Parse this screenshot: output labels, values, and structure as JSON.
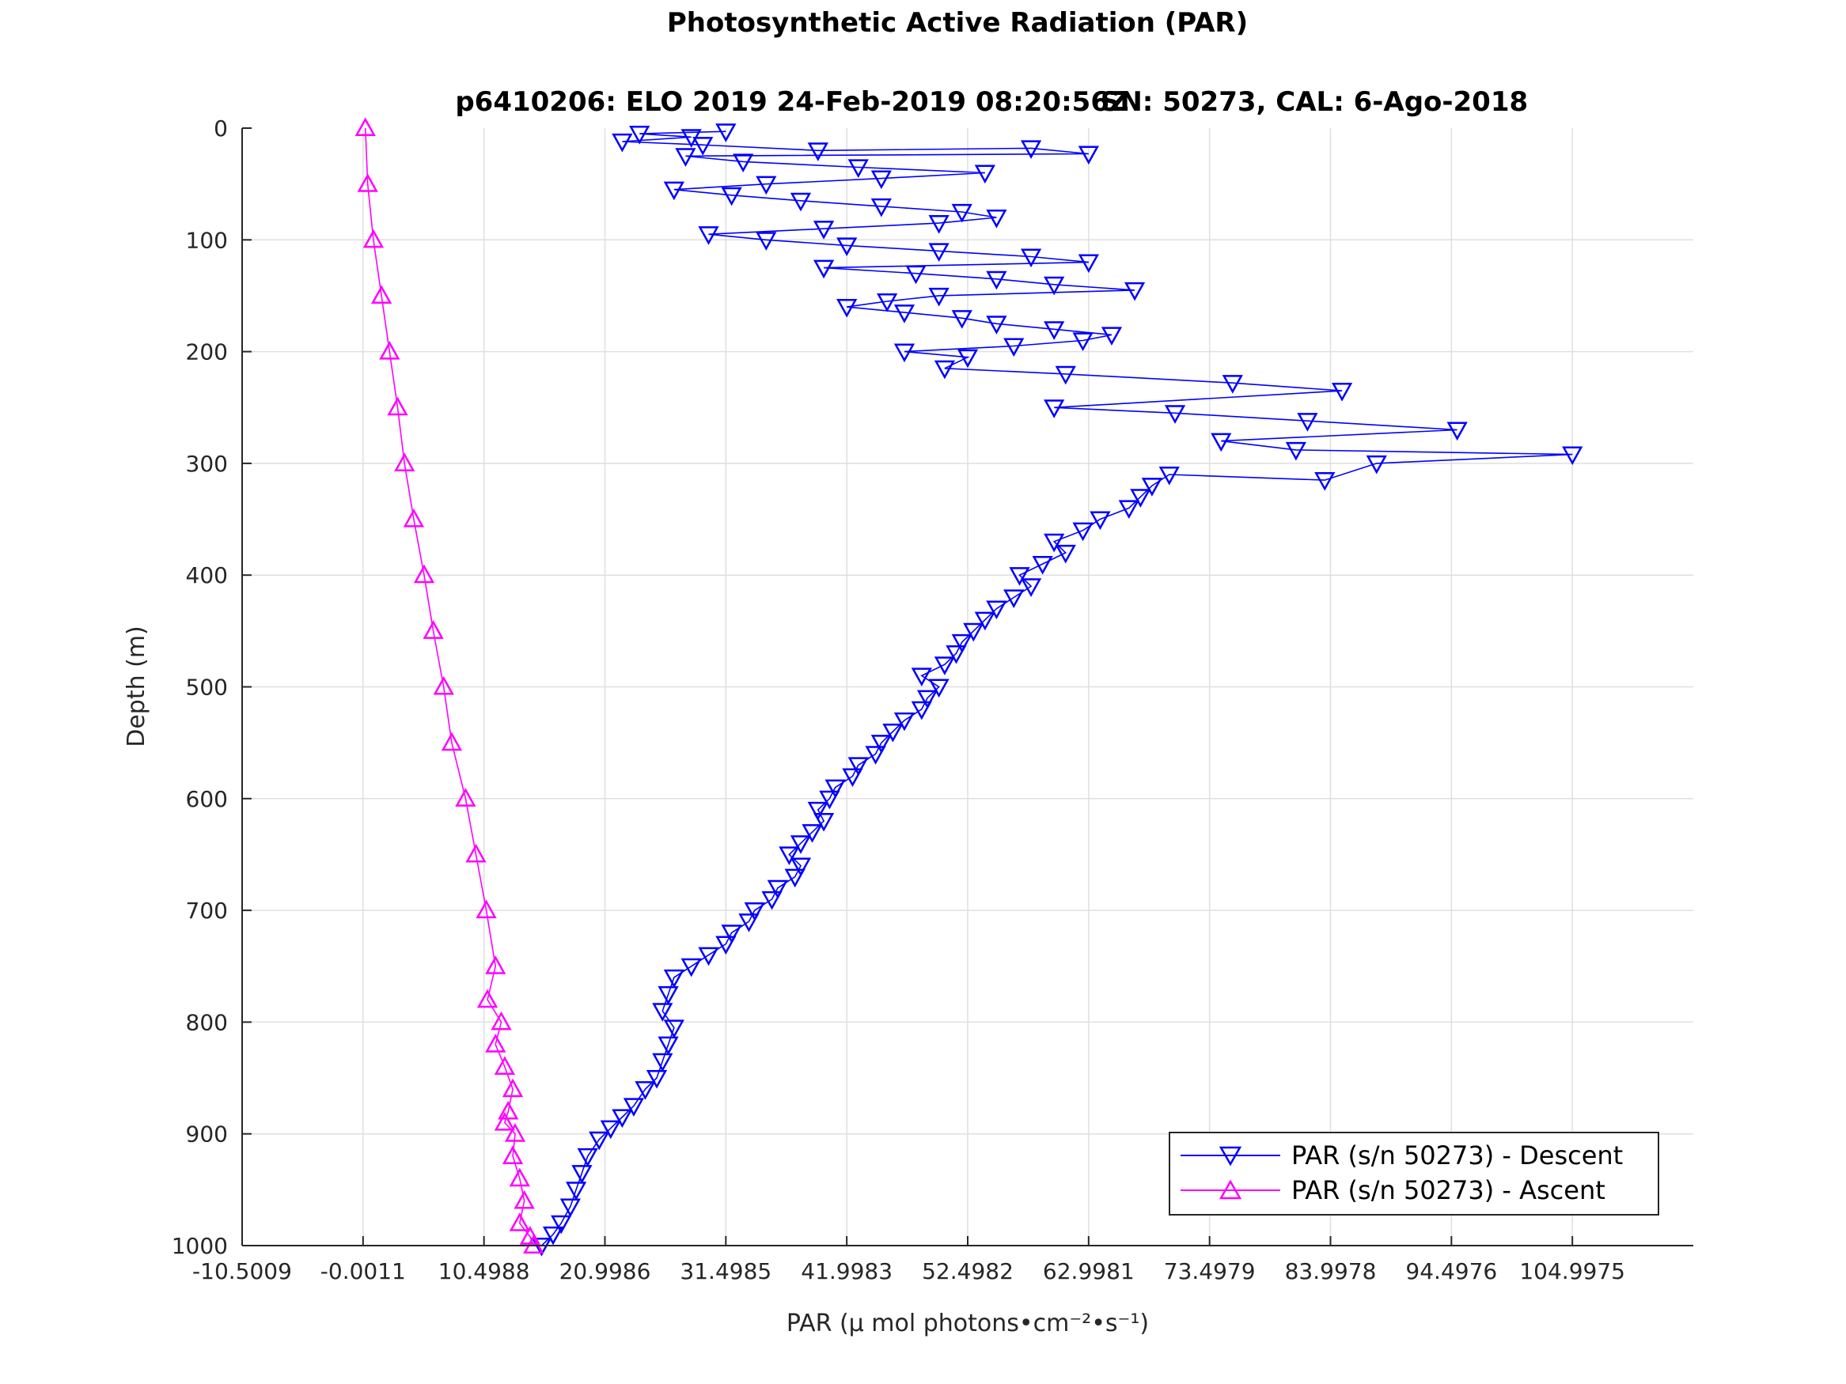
{
  "title": "Photosynthetic Active Radiation (PAR)",
  "subtitle_left": "p6410206: ELO 2019 24-Feb-2019 08:20:56Z",
  "subtitle_right": "SN: 50273, CAL: 6-Ago-2018",
  "colors": {
    "descent": "#0000ff",
    "ascent": "#ff00ff",
    "grid": "#dfdfdf",
    "axis": "#262626"
  },
  "chart_data": {
    "type": "scatter",
    "xlabel": "PAR (μ mol photons•cm⁻²•s⁻¹)",
    "ylabel": "Depth (m)",
    "xlim": [
      -10.5009,
      115.4975
    ],
    "ylim": [
      0,
      1000
    ],
    "y_reversed": true,
    "grid": true,
    "legend_position": "bottom-right",
    "x_ticks": [
      "-10.5009",
      "-0.0011",
      "10.4988",
      "20.9986",
      "31.4985",
      "41.9983",
      "52.4982",
      "62.9981",
      "73.4979",
      "83.9978",
      "94.4976",
      "104.9975"
    ],
    "y_ticks": [
      "0",
      "100",
      "200",
      "300",
      "400",
      "500",
      "600",
      "700",
      "800",
      "900",
      "1000"
    ],
    "series": [
      {
        "name": "PAR (s/n 50273) - Descent",
        "marker": "triangle-down",
        "points": [
          [
            15.5,
            1000
          ],
          [
            16.5,
            990
          ],
          [
            17.2,
            980
          ],
          [
            18.0,
            965
          ],
          [
            18.5,
            950
          ],
          [
            19.0,
            935
          ],
          [
            19.5,
            920
          ],
          [
            20.5,
            905
          ],
          [
            21.5,
            895
          ],
          [
            22.5,
            885
          ],
          [
            23.5,
            875
          ],
          [
            24.5,
            860
          ],
          [
            25.5,
            850
          ],
          [
            26.0,
            835
          ],
          [
            26.5,
            820
          ],
          [
            27.0,
            805
          ],
          [
            26.0,
            790
          ],
          [
            26.5,
            775
          ],
          [
            27.0,
            760
          ],
          [
            28.5,
            750
          ],
          [
            30.0,
            740
          ],
          [
            31.5,
            730
          ],
          [
            32.0,
            720
          ],
          [
            33.5,
            710
          ],
          [
            34.0,
            700
          ],
          [
            35.5,
            690
          ],
          [
            36.0,
            680
          ],
          [
            37.5,
            670
          ],
          [
            38.0,
            660
          ],
          [
            37.0,
            650
          ],
          [
            38.0,
            640
          ],
          [
            39.0,
            630
          ],
          [
            40.0,
            620
          ],
          [
            39.5,
            610
          ],
          [
            40.5,
            600
          ],
          [
            41.0,
            590
          ],
          [
            42.5,
            580
          ],
          [
            43.0,
            570
          ],
          [
            44.5,
            560
          ],
          [
            45.0,
            550
          ],
          [
            46.0,
            540
          ],
          [
            47.0,
            530
          ],
          [
            48.5,
            520
          ],
          [
            49.0,
            510
          ],
          [
            50.0,
            500
          ],
          [
            48.5,
            490
          ],
          [
            50.5,
            480
          ],
          [
            51.5,
            470
          ],
          [
            52.0,
            460
          ],
          [
            53.0,
            450
          ],
          [
            54.0,
            440
          ],
          [
            55.0,
            430
          ],
          [
            56.5,
            420
          ],
          [
            58.0,
            410
          ],
          [
            57.0,
            400
          ],
          [
            59.0,
            390
          ],
          [
            61.0,
            380
          ],
          [
            60.0,
            370
          ],
          [
            62.5,
            360
          ],
          [
            64.0,
            350
          ],
          [
            66.5,
            340
          ],
          [
            67.5,
            330
          ],
          [
            68.5,
            320
          ],
          [
            70.0,
            310
          ],
          [
            83.5,
            315
          ],
          [
            88.0,
            300
          ],
          [
            105.0,
            292
          ],
          [
            81.0,
            288
          ],
          [
            74.5,
            280
          ],
          [
            95.0,
            270
          ],
          [
            82.0,
            262
          ],
          [
            70.5,
            255
          ],
          [
            60.0,
            250
          ],
          [
            85.0,
            235
          ],
          [
            75.5,
            228
          ],
          [
            61.0,
            220
          ],
          [
            50.5,
            215
          ],
          [
            52.5,
            205
          ],
          [
            47.0,
            200
          ],
          [
            56.5,
            195
          ],
          [
            62.5,
            190
          ],
          [
            65.0,
            185
          ],
          [
            60.0,
            180
          ],
          [
            55.0,
            175
          ],
          [
            52.0,
            170
          ],
          [
            47.0,
            165
          ],
          [
            42.0,
            160
          ],
          [
            45.5,
            155
          ],
          [
            50.0,
            150
          ],
          [
            67.0,
            145
          ],
          [
            60.0,
            140
          ],
          [
            55.0,
            135
          ],
          [
            48.0,
            130
          ],
          [
            40.0,
            125
          ],
          [
            63.0,
            120
          ],
          [
            58.0,
            115
          ],
          [
            50.0,
            110
          ],
          [
            42.0,
            105
          ],
          [
            35.0,
            100
          ],
          [
            30.0,
            95
          ],
          [
            40.0,
            90
          ],
          [
            50.0,
            85
          ],
          [
            55.0,
            80
          ],
          [
            52.0,
            75
          ],
          [
            45.0,
            70
          ],
          [
            38.0,
            65
          ],
          [
            32.0,
            60
          ],
          [
            27.0,
            55
          ],
          [
            35.0,
            50
          ],
          [
            45.0,
            45
          ],
          [
            54.0,
            40
          ],
          [
            43.0,
            35
          ],
          [
            33.0,
            30
          ],
          [
            28.0,
            25
          ],
          [
            63.0,
            23
          ],
          [
            58.0,
            18
          ],
          [
            39.5,
            20
          ],
          [
            29.5,
            15
          ],
          [
            22.5,
            12
          ],
          [
            28.5,
            8
          ],
          [
            24.0,
            5
          ],
          [
            31.5,
            3
          ]
        ]
      },
      {
        "name": "PAR (s/n 50273) - Ascent",
        "marker": "triangle-up",
        "points": [
          [
            0.2,
            0
          ],
          [
            0.4,
            50
          ],
          [
            0.9,
            100
          ],
          [
            1.6,
            150
          ],
          [
            2.3,
            200
          ],
          [
            3.0,
            250
          ],
          [
            3.6,
            300
          ],
          [
            4.4,
            350
          ],
          [
            5.3,
            400
          ],
          [
            6.1,
            450
          ],
          [
            7.0,
            500
          ],
          [
            7.7,
            550
          ],
          [
            8.9,
            600
          ],
          [
            9.8,
            650
          ],
          [
            10.7,
            700
          ],
          [
            11.5,
            750
          ],
          [
            10.8,
            780
          ],
          [
            12.0,
            800
          ],
          [
            11.5,
            820
          ],
          [
            12.3,
            840
          ],
          [
            13.0,
            860
          ],
          [
            12.6,
            880
          ],
          [
            12.3,
            890
          ],
          [
            13.2,
            900
          ],
          [
            13.0,
            920
          ],
          [
            13.6,
            940
          ],
          [
            14.0,
            960
          ],
          [
            13.6,
            980
          ],
          [
            14.5,
            992
          ],
          [
            14.8,
            1000
          ]
        ]
      }
    ]
  }
}
